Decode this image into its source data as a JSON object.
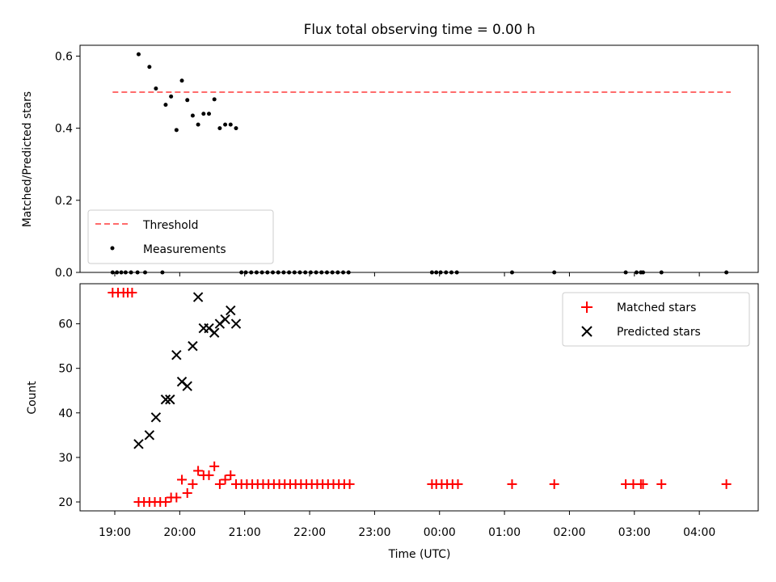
{
  "chart_data": [
    {
      "type": "scatter",
      "panel": "top",
      "title": "Flux total observing time = 0.00 h",
      "xlabel": "",
      "ylabel": "Matched/Predicted stars",
      "ylim": [
        0,
        0.63
      ],
      "yticks": [
        "0.0",
        "0.2",
        "0.4",
        "0.6"
      ],
      "legend": "lower-left",
      "threshold": {
        "name": "Threshold",
        "value": 0.5,
        "x_start": "18:58",
        "x_end": "04:29",
        "color": "#ff6b6b"
      },
      "series": [
        {
          "name": "Measurements",
          "color": "#000000",
          "points": [
            [
              "18:58",
              0
            ],
            [
              "19:02",
              0
            ],
            [
              "19:06",
              0
            ],
            [
              "19:10",
              0
            ],
            [
              "19:15",
              0
            ],
            [
              "19:21",
              0
            ],
            [
              "19:28",
              0
            ],
            [
              "19:44",
              0
            ],
            [
              "19:22",
              0.605
            ],
            [
              "19:32",
              0.57
            ],
            [
              "19:38",
              0.51
            ],
            [
              "19:47",
              0.465
            ],
            [
              "19:52",
              0.488
            ],
            [
              "19:57",
              0.395
            ],
            [
              "20:02",
              0.532
            ],
            [
              "20:07",
              0.478
            ],
            [
              "20:12",
              0.435
            ],
            [
              "20:17",
              0.41
            ],
            [
              "20:22",
              0.44
            ],
            [
              "20:27",
              0.44
            ],
            [
              "20:32",
              0.48
            ],
            [
              "20:37",
              0.4
            ],
            [
              "20:42",
              0.41
            ],
            [
              "20:47",
              0.41
            ],
            [
              "20:52",
              0.4
            ],
            [
              "20:57",
              0
            ],
            [
              "21:01",
              0
            ],
            [
              "21:06",
              0
            ],
            [
              "21:11",
              0
            ],
            [
              "21:16",
              0
            ],
            [
              "21:21",
              0
            ],
            [
              "21:26",
              0
            ],
            [
              "21:31",
              0
            ],
            [
              "21:36",
              0
            ],
            [
              "21:41",
              0
            ],
            [
              "21:46",
              0
            ],
            [
              "21:51",
              0
            ],
            [
              "21:56",
              0
            ],
            [
              "22:01",
              0
            ],
            [
              "22:06",
              0
            ],
            [
              "22:11",
              0
            ],
            [
              "22:16",
              0
            ],
            [
              "22:21",
              0
            ],
            [
              "22:26",
              0
            ],
            [
              "22:31",
              0
            ],
            [
              "22:36",
              0
            ],
            [
              "23:53",
              0
            ],
            [
              "23:57",
              0
            ],
            [
              "00:01",
              0
            ],
            [
              "00:06",
              0
            ],
            [
              "00:11",
              0
            ],
            [
              "00:16",
              0
            ],
            [
              "01:07",
              0
            ],
            [
              "01:46",
              0
            ],
            [
              "02:52",
              0
            ],
            [
              "03:02",
              0
            ],
            [
              "03:06",
              0
            ],
            [
              "03:08",
              0
            ],
            [
              "03:25",
              0
            ],
            [
              "04:25",
              0
            ]
          ]
        }
      ]
    },
    {
      "type": "scatter",
      "panel": "bottom",
      "xlabel": "Time (UTC)",
      "ylabel": "Count",
      "ylim": [
        18,
        69
      ],
      "yticks": [
        "20",
        "30",
        "40",
        "50",
        "60"
      ],
      "xticks": [
        "19:00",
        "20:00",
        "21:00",
        "22:00",
        "23:00",
        "00:00",
        "01:00",
        "02:00",
        "03:00",
        "04:00"
      ],
      "legend": "top-right",
      "series": [
        {
          "name": "Matched stars",
          "marker": "+",
          "color": "#ff0000",
          "points": [
            [
              "18:58",
              67
            ],
            [
              "19:03",
              67
            ],
            [
              "19:08",
              67
            ],
            [
              "19:12",
              67
            ],
            [
              "19:16",
              67
            ],
            [
              "19:22",
              20
            ],
            [
              "19:27",
              20
            ],
            [
              "19:32",
              20
            ],
            [
              "19:37",
              20
            ],
            [
              "19:42",
              20
            ],
            [
              "19:47",
              20
            ],
            [
              "19:52",
              21
            ],
            [
              "19:57",
              21
            ],
            [
              "20:02",
              25
            ],
            [
              "20:07",
              22
            ],
            [
              "20:12",
              24
            ],
            [
              "20:17",
              27
            ],
            [
              "20:22",
              26
            ],
            [
              "20:27",
              26
            ],
            [
              "20:32",
              28
            ],
            [
              "20:37",
              24
            ],
            [
              "20:42",
              25
            ],
            [
              "20:47",
              26
            ],
            [
              "20:52",
              24
            ],
            [
              "20:57",
              24
            ],
            [
              "21:02",
              24
            ],
            [
              "21:07",
              24
            ],
            [
              "21:12",
              24
            ],
            [
              "21:17",
              24
            ],
            [
              "21:22",
              24
            ],
            [
              "21:27",
              24
            ],
            [
              "21:32",
              24
            ],
            [
              "21:37",
              24
            ],
            [
              "21:42",
              24
            ],
            [
              "21:47",
              24
            ],
            [
              "21:52",
              24
            ],
            [
              "21:57",
              24
            ],
            [
              "22:02",
              24
            ],
            [
              "22:07",
              24
            ],
            [
              "22:12",
              24
            ],
            [
              "22:17",
              24
            ],
            [
              "22:22",
              24
            ],
            [
              "22:27",
              24
            ],
            [
              "22:32",
              24
            ],
            [
              "22:37",
              24
            ],
            [
              "23:53",
              24
            ],
            [
              "23:57",
              24
            ],
            [
              "00:02",
              24
            ],
            [
              "00:07",
              24
            ],
            [
              "00:12",
              24
            ],
            [
              "00:17",
              24
            ],
            [
              "01:07",
              24
            ],
            [
              "01:46",
              24
            ],
            [
              "02:52",
              24
            ],
            [
              "02:59",
              24
            ],
            [
              "03:06",
              24
            ],
            [
              "03:08",
              24
            ],
            [
              "03:25",
              24
            ],
            [
              "04:25",
              24
            ]
          ]
        },
        {
          "name": "Predicted stars",
          "marker": "x",
          "color": "#000000",
          "points": [
            [
              "19:22",
              33
            ],
            [
              "19:32",
              35
            ],
            [
              "19:38",
              39
            ],
            [
              "19:47",
              43
            ],
            [
              "19:51",
              43
            ],
            [
              "19:57",
              53
            ],
            [
              "20:02",
              47
            ],
            [
              "20:07",
              46
            ],
            [
              "20:12",
              55
            ],
            [
              "20:17",
              66
            ],
            [
              "20:22",
              59
            ],
            [
              "20:27",
              59
            ],
            [
              "20:32",
              58
            ],
            [
              "20:37",
              60
            ],
            [
              "20:42",
              61
            ],
            [
              "20:47",
              63
            ],
            [
              "20:52",
              60
            ]
          ]
        }
      ]
    }
  ],
  "legend_labels": {
    "threshold": "Threshold",
    "measurements": "Measurements",
    "matched": "Matched stars",
    "predicted": "Predicted stars"
  }
}
